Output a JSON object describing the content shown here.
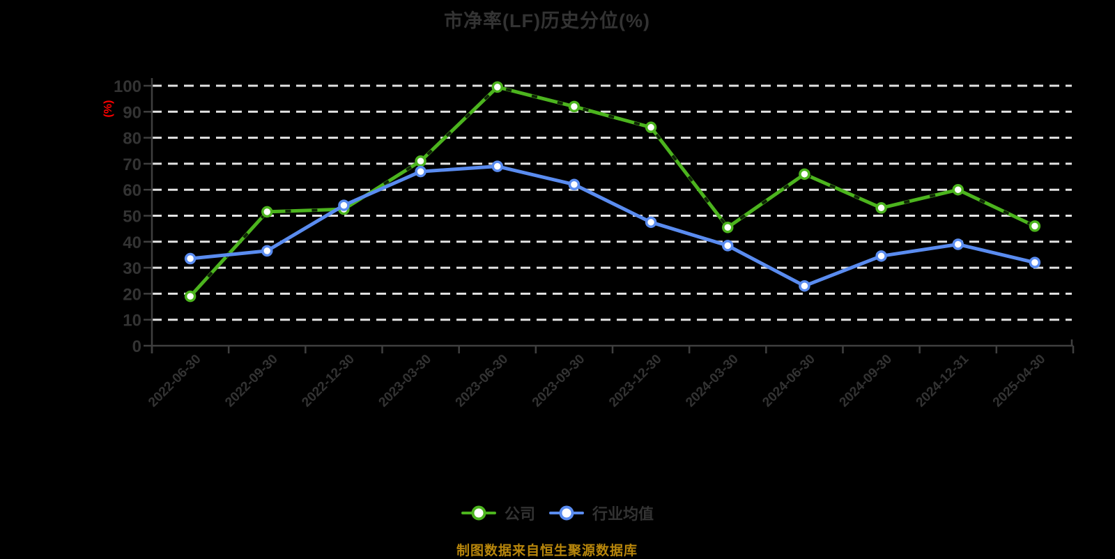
{
  "title": "市净率(LF)历史分位(%)",
  "source_note": "制图数据来自恒生聚源数据库",
  "chart_data": {
    "type": "line",
    "title": "市净率(LF)历史分位(%)",
    "xlabel": "",
    "ylabel": "(%)",
    "ylim": [
      0,
      100
    ],
    "ytick_step": 10,
    "yticks": [
      0,
      10,
      20,
      30,
      40,
      50,
      60,
      70,
      80,
      90,
      100
    ],
    "grid": "horizontal white dashed gridlines on black background",
    "legend_position": "bottom-center",
    "categories": [
      "2022-06-30",
      "2022-09-30",
      "2022-12-30",
      "2023-03-30",
      "2023-06-30",
      "2023-09-30",
      "2023-12-30",
      "2024-03-30",
      "2024-06-30",
      "2024-09-30",
      "2024-12-31",
      "2025-04-30"
    ],
    "series": [
      {
        "name": "公司",
        "color": "#4cb41e",
        "marker": "white-filled-circle",
        "values": [
          19,
          51.5,
          52.5,
          71,
          99.5,
          92,
          84,
          45.5,
          66,
          53,
          60,
          46
        ]
      },
      {
        "name": "行业均值",
        "color": "#5a8cf0",
        "marker": "white-filled-circle",
        "values": [
          33.5,
          36.5,
          54,
          67,
          69,
          62,
          47.5,
          38.5,
          23,
          34.5,
          39,
          32
        ]
      }
    ]
  },
  "colors": {
    "background": "#000000",
    "title_text": "#333333",
    "axis_labels": "#333333",
    "axis_line": "#3f3f3f",
    "gridline": "#e3e3e3",
    "y_unit_label": "#ff0000",
    "source_text": "#b8860b",
    "company_green": "#4cb41e",
    "industry_blue": "#5a8cf0"
  }
}
